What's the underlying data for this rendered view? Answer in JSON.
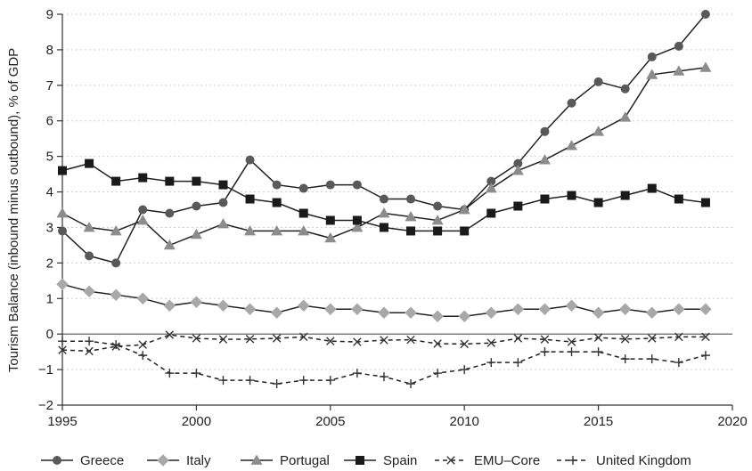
{
  "chart_data": {
    "type": "line",
    "title": "",
    "xlabel": "",
    "ylabel": "Tourism Balance (inbound minus outbound), % of GDP",
    "xlim": [
      1995,
      2020
    ],
    "ylim": [
      -2,
      9
    ],
    "xticks": [
      1995,
      2000,
      2005,
      2010,
      2015,
      2020
    ],
    "yticks": [
      -2,
      -1,
      0,
      1,
      2,
      3,
      4,
      5,
      6,
      7,
      8,
      9
    ],
    "grid": "y-dotted",
    "zero_line": true,
    "legend_position": "bottom",
    "x": [
      1995,
      1996,
      1997,
      1998,
      1999,
      2000,
      2001,
      2002,
      2003,
      2004,
      2005,
      2006,
      2007,
      2008,
      2009,
      2010,
      2011,
      2012,
      2013,
      2014,
      2015,
      2016,
      2017,
      2018,
      2019
    ],
    "series": [
      {
        "name": "Greece",
        "color": "#595959",
        "marker": "circle",
        "dash": "solid",
        "values": [
          2.9,
          2.2,
          2.0,
          3.5,
          3.4,
          3.6,
          3.7,
          4.9,
          4.2,
          4.1,
          4.2,
          4.2,
          3.8,
          3.8,
          3.6,
          3.5,
          4.3,
          4.8,
          5.7,
          6.5,
          7.1,
          6.9,
          7.8,
          8.1,
          9.0
        ]
      },
      {
        "name": "Italy",
        "color": "#a8a8a8",
        "marker": "diamond",
        "dash": "solid",
        "values": [
          1.4,
          1.2,
          1.1,
          1.0,
          0.8,
          0.9,
          0.8,
          0.7,
          0.6,
          0.8,
          0.7,
          0.7,
          0.6,
          0.6,
          0.5,
          0.5,
          0.6,
          0.7,
          0.7,
          0.8,
          0.6,
          0.7,
          0.6,
          0.7,
          0.7
        ]
      },
      {
        "name": "Portugal",
        "color": "#8c8c8c",
        "marker": "triangle",
        "dash": "solid",
        "values": [
          3.4,
          3.0,
          2.9,
          3.2,
          2.5,
          2.8,
          3.1,
          2.9,
          2.9,
          2.9,
          2.7,
          3.0,
          3.4,
          3.3,
          3.2,
          3.5,
          4.1,
          4.6,
          4.9,
          5.3,
          5.7,
          6.1,
          7.3,
          7.4,
          7.5
        ]
      },
      {
        "name": "Spain",
        "color": "#1a1a1a",
        "marker": "square",
        "dash": "solid",
        "values": [
          4.6,
          4.8,
          4.3,
          4.4,
          4.3,
          4.3,
          4.2,
          3.8,
          3.7,
          3.4,
          3.2,
          3.2,
          3.0,
          2.9,
          2.9,
          2.9,
          3.4,
          3.6,
          3.8,
          3.9,
          3.7,
          3.9,
          4.1,
          3.8,
          3.7
        ]
      },
      {
        "name": "EMU–Core",
        "color": "#333333",
        "marker": "x",
        "dash": "dash",
        "values": [
          -0.45,
          -0.48,
          -0.35,
          -0.3,
          -0.02,
          -0.12,
          -0.15,
          -0.14,
          -0.12,
          -0.08,
          -0.2,
          -0.22,
          -0.17,
          -0.16,
          -0.27,
          -0.28,
          -0.25,
          -0.12,
          -0.15,
          -0.22,
          -0.1,
          -0.14,
          -0.12,
          -0.08,
          -0.08
        ]
      },
      {
        "name": "United Kingdom",
        "color": "#333333",
        "marker": "plus",
        "dash": "dash",
        "values": [
          -0.2,
          -0.2,
          -0.3,
          -0.6,
          -1.1,
          -1.1,
          -1.3,
          -1.3,
          -1.4,
          -1.3,
          -1.3,
          -1.1,
          -1.2,
          -1.4,
          -1.1,
          -1.0,
          -0.8,
          -0.8,
          -0.5,
          -0.5,
          -0.5,
          -0.7,
          -0.7,
          -0.8,
          -0.6
        ]
      }
    ]
  }
}
